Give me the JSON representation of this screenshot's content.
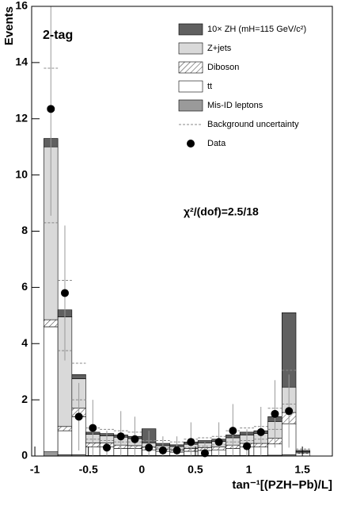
{
  "chart_data": {
    "type": "histogram",
    "ylabel": "Events",
    "xlabel": "tan⁻¹[(PZH−Pb)/L]",
    "tag": "2-tag",
    "annotation": "χ²/(dof)=2.5/18",
    "bins": [
      -0.916,
      -0.785,
      -0.654,
      -0.524,
      -0.393,
      -0.262,
      -0.131,
      0,
      0.131,
      0.262,
      0.393,
      0.524,
      0.654,
      0.785,
      0.916,
      1.047,
      1.178,
      1.309,
      1.44,
      1.571
    ],
    "xlim": [
      -1.03,
      1.78
    ],
    "ylim": [
      0,
      16
    ],
    "xticks": [
      -1,
      -0.5,
      0,
      0.5,
      1,
      1.5
    ],
    "yticks": [
      0,
      2,
      4,
      6,
      8,
      10,
      12,
      14,
      16
    ],
    "series": [
      {
        "name": "Mis-ID leptons",
        "color": "#9a9a9a",
        "values": [
          0.15,
          0.05,
          0.05,
          0.02,
          0.02,
          0.02,
          0.02,
          0.02,
          0.02,
          0.02,
          0.02,
          0.02,
          0.02,
          0.02,
          0.02,
          0.02,
          0.03,
          0.05,
          0
        ]
      },
      {
        "name": "tt",
        "color": "#ffffff",
        "values": [
          4.45,
          0.85,
          1.35,
          0.3,
          0.3,
          0.25,
          0.25,
          0.2,
          0.15,
          0.12,
          0.15,
          0.18,
          0.2,
          0.25,
          0.3,
          0.3,
          0.4,
          1.1,
          0.1
        ]
      },
      {
        "name": "Diboson",
        "color": "#ffffff",
        "hatch": true,
        "values": [
          0.25,
          0.15,
          0.3,
          0.15,
          0.15,
          0.12,
          0.1,
          0.1,
          0.08,
          0.08,
          0.1,
          0.1,
          0.1,
          0.12,
          0.13,
          0.13,
          0.2,
          0.4,
          0.02
        ]
      },
      {
        "name": "Z+jets",
        "color": "#d9d9d9",
        "values": [
          6.15,
          3.9,
          1.05,
          0.3,
          0.25,
          0.28,
          0.25,
          0.15,
          0.12,
          0.12,
          0.15,
          0.17,
          0.2,
          0.26,
          0.3,
          0.35,
          0.6,
          0.9,
          0.03
        ]
      },
      {
        "name": "10× ZH (mH=115 GeV/c²)",
        "color": "#606060",
        "values": [
          0.3,
          0.25,
          0.15,
          0.08,
          0.08,
          0.08,
          0.08,
          0.5,
          0.08,
          0.06,
          0.08,
          0.08,
          0.08,
          0.1,
          0.1,
          0.1,
          0.17,
          2.65,
          0.05
        ]
      }
    ],
    "uncertainty": {
      "name": "Background uncertainty",
      "color": "#888888",
      "upper": [
        13.8,
        6.25,
        3.3,
        1.0,
        0.95,
        0.9,
        0.85,
        0.55,
        0.55,
        0.5,
        0.6,
        0.65,
        0.7,
        0.9,
        1.0,
        1.05,
        1.7,
        3.05,
        0.25
      ],
      "lower": [
        8.3,
        3.75,
        2.0,
        0.6,
        0.55,
        0.5,
        0.5,
        0.3,
        0.3,
        0.25,
        0.3,
        0.35,
        0.4,
        0.5,
        0.55,
        0.6,
        0.95,
        1.85,
        0.1
      ]
    },
    "data": {
      "name": "Data",
      "color": "#000000",
      "values": [
        12.35,
        5.8,
        1.4,
        1.0,
        0.3,
        0.7,
        0.6,
        0.3,
        0.2,
        0.2,
        0.5,
        0.1,
        0.5,
        0.9,
        0.35,
        0.85,
        1.5,
        1.6,
        null
      ],
      "errors": [
        3.8,
        2.4,
        1.2,
        1.0,
        0.6,
        0.9,
        0.8,
        0.6,
        0.5,
        0.5,
        0.7,
        0.4,
        0.7,
        0.95,
        0.6,
        0.9,
        1.2,
        1.3,
        null
      ]
    }
  }
}
